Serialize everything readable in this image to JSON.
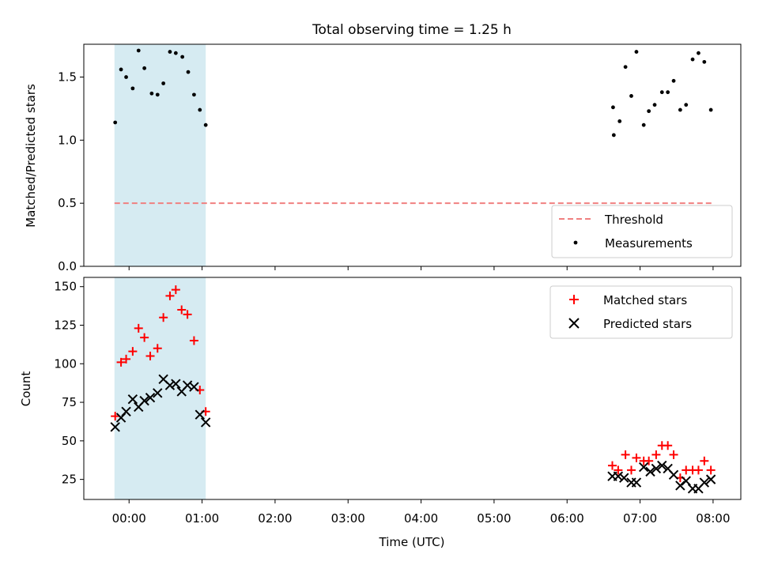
{
  "chart_data": {
    "title": "Total observing time = 1.25 h",
    "xlabel": "Time (UTC)",
    "x_ticks": [
      "00:00",
      "01:00",
      "02:00",
      "03:00",
      "04:00",
      "05:00",
      "06:00",
      "07:00",
      "08:00"
    ],
    "x_tick_hours": [
      0,
      1,
      2,
      3,
      4,
      5,
      6,
      7,
      8
    ],
    "xlim_hours": [
      -0.62,
      8.38
    ],
    "shaded_interval_hours": [
      -0.2,
      1.05
    ],
    "shade_color": "#add8e6",
    "panels": [
      {
        "type": "scatter",
        "ylabel": "Matched/Predicted stars",
        "ylim": [
          0.0,
          1.76
        ],
        "y_ticks": [
          "0.0",
          "0.5",
          "1.0",
          "1.5"
        ],
        "y_tick_values": [
          0.0,
          0.5,
          1.0,
          1.5
        ],
        "legend_position": "lower-right",
        "threshold": {
          "name": "Threshold",
          "value": 0.5,
          "x_range_hours": [
            -0.2,
            8.0
          ],
          "color": "#f08080",
          "style": "dashed"
        },
        "series": [
          {
            "name": "Measurements",
            "color": "#000000",
            "marker": "dot",
            "x_hours": [
              -0.19,
              -0.11,
              -0.04,
              0.05,
              0.13,
              0.21,
              0.31,
              0.39,
              0.47,
              0.56,
              0.64,
              0.73,
              0.81,
              0.89,
              0.97,
              1.05,
              6.63,
              6.64,
              6.72,
              6.8,
              6.88,
              6.95,
              7.05,
              7.12,
              7.2,
              7.3,
              7.38,
              7.46,
              7.55,
              7.63,
              7.72,
              7.8,
              7.88,
              7.97
            ],
            "y": [
              1.14,
              1.56,
              1.5,
              1.41,
              1.71,
              1.57,
              1.37,
              1.36,
              1.45,
              1.7,
              1.69,
              1.66,
              1.54,
              1.36,
              1.24,
              1.12,
              1.26,
              1.04,
              1.15,
              1.58,
              1.35,
              1.7,
              1.12,
              1.23,
              1.28,
              1.38,
              1.38,
              1.47,
              1.24,
              1.28,
              1.64,
              1.69,
              1.62,
              1.24
            ]
          }
        ]
      },
      {
        "type": "scatter",
        "ylabel": "Count",
        "ylim": [
          12,
          156
        ],
        "y_ticks": [
          "25",
          "50",
          "75",
          "100",
          "125",
          "150"
        ],
        "y_tick_values": [
          25,
          50,
          75,
          100,
          125,
          150
        ],
        "legend_position": "top-right",
        "series": [
          {
            "name": "Matched stars",
            "color": "#ff0000",
            "marker": "plus",
            "x_hours": [
              -0.19,
              -0.11,
              -0.04,
              0.05,
              0.13,
              0.21,
              0.29,
              0.39,
              0.47,
              0.56,
              0.64,
              0.72,
              0.8,
              0.89,
              0.97,
              1.05,
              6.62,
              6.7,
              6.8,
              6.88,
              6.95,
              7.05,
              7.12,
              7.22,
              7.3,
              7.38,
              7.46,
              7.55,
              7.63,
              7.72,
              7.8,
              7.88,
              7.97
            ],
            "y": [
              66,
              101,
              103,
              108,
              123,
              117,
              105,
              110,
              130,
              144,
              148,
              135,
              132,
              115,
              83,
              69,
              34,
              31,
              41,
              31,
              39,
              37,
              37,
              41,
              47,
              47,
              41,
              26,
              31,
              31,
              31,
              37,
              31
            ]
          },
          {
            "name": "Predicted stars",
            "color": "#000000",
            "marker": "x",
            "x_hours": [
              -0.19,
              -0.11,
              -0.04,
              0.05,
              0.13,
              0.21,
              0.29,
              0.39,
              0.47,
              0.56,
              0.64,
              0.72,
              0.8,
              0.89,
              0.97,
              1.05,
              6.62,
              6.7,
              6.78,
              6.88,
              6.95,
              7.05,
              7.14,
              7.22,
              7.3,
              7.38,
              7.46,
              7.55,
              7.63,
              7.72,
              7.8,
              7.88,
              7.97
            ],
            "y": [
              59,
              65,
              69,
              77,
              72,
              76,
              78,
              81,
              90,
              86,
              87,
              82,
              86,
              85,
              67,
              62,
              27,
              27,
              26,
              23,
              23,
              33,
              30,
              32,
              34,
              32,
              28,
              21,
              24,
              19,
              19,
              23,
              25
            ]
          }
        ]
      }
    ]
  }
}
